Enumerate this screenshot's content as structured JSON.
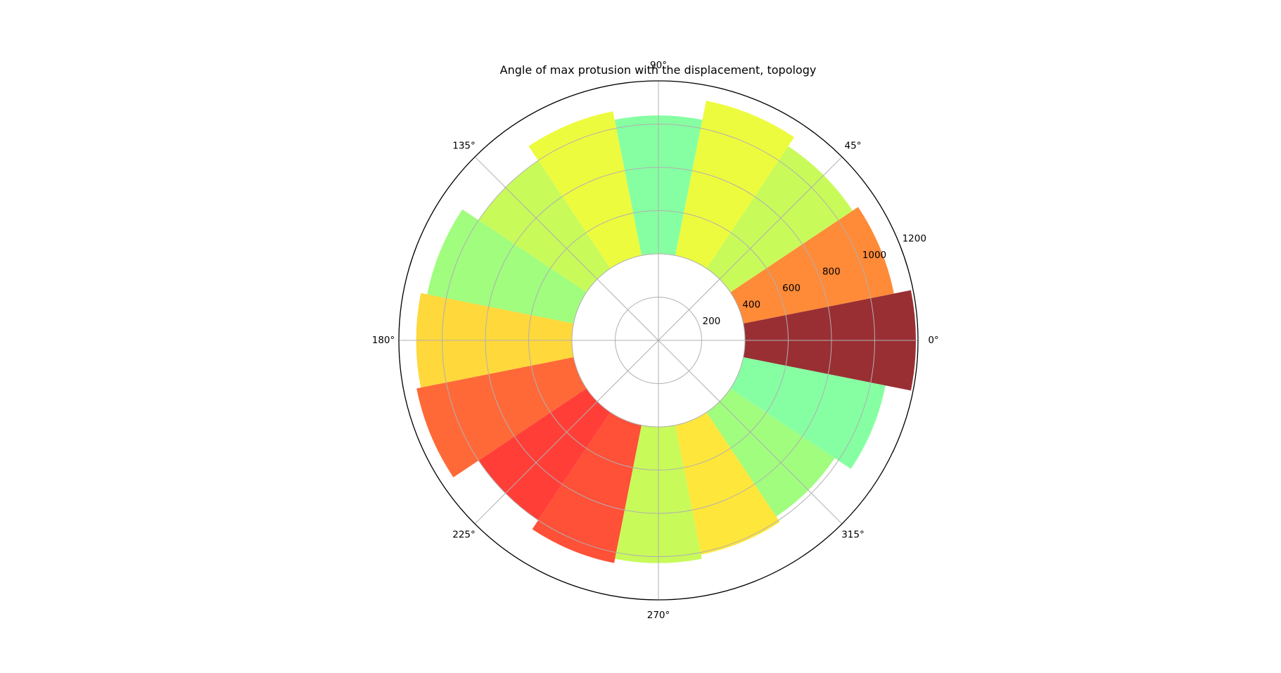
{
  "chart_data": {
    "type": "bar",
    "subtype": "polar",
    "title": "Angle of max protusion with the displacement, topology",
    "bin_width_degrees": 22.5,
    "inner_radius_offset": 400,
    "angles_degrees": [
      0,
      22.5,
      45,
      67.5,
      90,
      112.5,
      135,
      157.5,
      180,
      202.5,
      225,
      247.5,
      270,
      292.5,
      315,
      337.5
    ],
    "values": [
      1190,
      1110,
      1080,
      1130,
      1040,
      1080,
      1000,
      1090,
      1120,
      1140,
      1000,
      1050,
      1030,
      1010,
      980,
      1070
    ],
    "colors": [
      "#992f33",
      "#ff8a38",
      "#c8fa5a",
      "#edfb3e",
      "#86ffa2",
      "#edfb3e",
      "#c8fa5a",
      "#a0fd7e",
      "#ffd83b",
      "#ff6938",
      "#ff3f37",
      "#ff5038",
      "#a0fd7e",
      "#c8fa5a",
      "#ffe63b",
      "#86ffa2",
      "#ffe73b",
      "#ffd83b",
      "#ff7038"
    ],
    "bar_colors": [
      "#992f33",
      "#ff8a38",
      "#c8fa5a",
      "#edfb3e",
      "#86ffa2",
      "#edfb3e",
      "#c8fa5a",
      "#a0fd7e",
      "#ffd83b",
      "#ff6938",
      "#ff3f37",
      "#ff5038",
      "#c8fa5a",
      "#ffe63b",
      "#a0fd7e",
      "#86ffa2"
    ],
    "angle_tick_labels": [
      "0°",
      "45°",
      "90°",
      "135°",
      "180°",
      "225°",
      "270°",
      "315°"
    ],
    "radial_tick_values": [
      200,
      400,
      600,
      800,
      1000,
      1200
    ],
    "radial_tick_labels": [
      "200",
      "400",
      "600",
      "800",
      "1000",
      "1200"
    ],
    "rlim": [
      0,
      1200
    ],
    "grid": true,
    "radial_label_angle_degrees": 22.5
  }
}
